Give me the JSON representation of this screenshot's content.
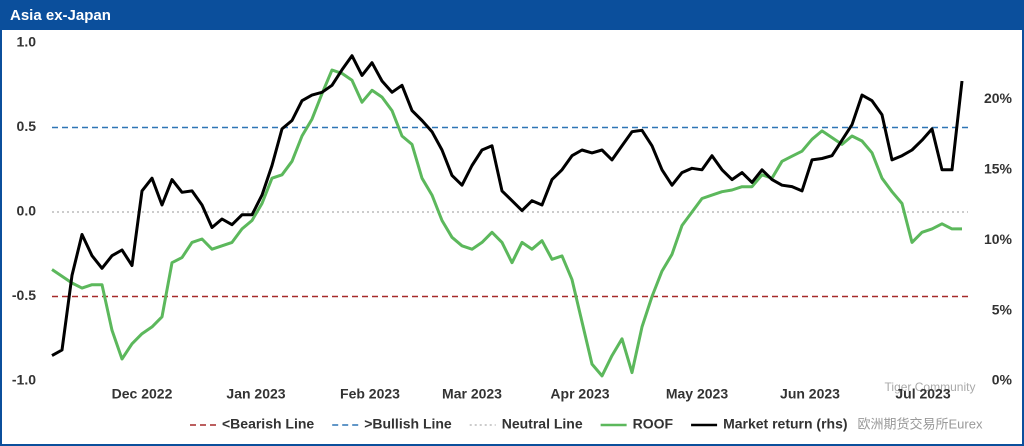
{
  "chart_data": {
    "type": "line",
    "title": "Asia ex-Japan",
    "x": [
      0,
      1,
      2,
      3,
      4,
      5,
      6,
      7,
      8,
      9,
      10,
      11,
      12,
      13,
      14,
      15,
      16,
      17,
      18,
      19,
      20,
      21,
      22,
      23,
      24,
      25,
      26,
      27,
      28,
      29,
      30,
      31,
      32,
      33,
      34,
      35,
      36,
      37,
      38,
      39,
      40,
      41,
      42,
      43,
      44,
      45,
      46,
      47,
      48,
      49,
      50,
      51,
      52,
      53,
      54,
      55,
      56,
      57,
      58,
      59,
      60,
      61,
      62,
      63,
      64,
      65,
      66,
      67,
      68,
      69,
      70,
      71,
      72,
      73,
      74,
      75,
      76,
      77,
      78,
      79,
      80,
      81,
      82,
      83,
      84,
      85,
      86,
      87,
      88,
      89,
      90,
      91
    ],
    "xlim": [
      0,
      91
    ],
    "xticks": [
      {
        "value": 9,
        "label": "Dec 2022"
      },
      {
        "value": 20.4,
        "label": "Jan 2023"
      },
      {
        "value": 31.8,
        "label": "Feb 2023"
      },
      {
        "value": 42,
        "label": "Mar 2023"
      },
      {
        "value": 52.8,
        "label": "Apr 2023"
      },
      {
        "value": 64.5,
        "label": "May 2023"
      },
      {
        "value": 75.8,
        "label": "Jun 2023"
      },
      {
        "value": 87.1,
        "label": "Jul 2023"
      }
    ],
    "ylim": [
      -1,
      1
    ],
    "yticks": [
      {
        "value": -1,
        "label": "-1.0"
      },
      -0.5,
      {
        "value": 0,
        "label": "0.0"
      },
      0.5,
      {
        "value": 1,
        "label": "1.0"
      }
    ],
    "y2lim": [
      0,
      24
    ],
    "y2ticks": [
      {
        "value": 0,
        "label": "0%"
      },
      {
        "value": 5,
        "label": "5%"
      },
      {
        "value": 10,
        "label": "10%"
      },
      {
        "value": 15,
        "label": "15%"
      },
      {
        "value": 20,
        "label": "20%"
      }
    ],
    "reference_lines": [
      {
        "name": "<Bearish Line",
        "value": -0.5,
        "color": "#a52a2a",
        "style": "dashed"
      },
      {
        "name": ">Bullish Line",
        "value": 0.5,
        "color": "#2e75b6",
        "style": "dashed"
      },
      {
        "name": "Neutral Line",
        "value": 0,
        "color": "#bbbbbb",
        "style": "dotted"
      }
    ],
    "series": [
      {
        "name": "ROOF",
        "color": "#5cb85c",
        "values": [
          -0.34,
          -0.38,
          -0.42,
          -0.45,
          -0.43,
          -0.43,
          -0.7,
          -0.87,
          -0.78,
          -0.72,
          -0.68,
          -0.62,
          -0.3,
          -0.27,
          -0.18,
          -0.16,
          -0.22,
          -0.2,
          -0.18,
          -0.1,
          -0.05,
          0.05,
          0.2,
          0.22,
          0.3,
          0.45,
          0.55,
          0.7,
          0.84,
          0.82,
          0.78,
          0.65,
          0.72,
          0.68,
          0.6,
          0.45,
          0.4,
          0.2,
          0.1,
          -0.05,
          -0.15,
          -0.2,
          -0.22,
          -0.18,
          -0.12,
          -0.18,
          -0.3,
          -0.18,
          -0.22,
          -0.17,
          -0.28,
          -0.26,
          -0.4,
          -0.65,
          -0.9,
          -0.97,
          -0.85,
          -0.75,
          -0.95,
          -0.68,
          -0.5,
          -0.35,
          -0.25,
          -0.08,
          0.0,
          0.08,
          0.1,
          0.12,
          0.13,
          0.15,
          0.15,
          0.22,
          0.2,
          0.3,
          0.33,
          0.36,
          0.43,
          0.48,
          0.44,
          0.4,
          0.45,
          0.42,
          0.35,
          0.2,
          0.12,
          0.05,
          -0.18,
          -0.12,
          -0.1,
          -0.07,
          -0.1,
          -0.1
        ]
      },
      {
        "name": "Market return (rhs)",
        "color": "#000000",
        "axis": "y2",
        "values": [
          1.8,
          2.2,
          7.5,
          10.4,
          8.9,
          8.0,
          8.9,
          9.3,
          8.2,
          13.5,
          14.4,
          12.5,
          14.3,
          13.4,
          13.5,
          12.5,
          10.9,
          11.5,
          11.1,
          11.8,
          11.8,
          13.2,
          15.3,
          17.9,
          18.5,
          19.9,
          20.3,
          20.5,
          21.0,
          22.1,
          23.1,
          21.7,
          22.6,
          21.3,
          20.5,
          21.0,
          19.2,
          18.5,
          17.7,
          16.4,
          14.6,
          13.9,
          15.3,
          16.4,
          16.7,
          13.5,
          12.8,
          12.1,
          12.8,
          12.5,
          14.3,
          15.0,
          16.0,
          16.4,
          16.2,
          16.4,
          15.7,
          16.7,
          17.7,
          17.8,
          16.7,
          15.0,
          13.9,
          14.8,
          15.1,
          15.0,
          16.0,
          15.0,
          14.3,
          14.8,
          14.1,
          15.0,
          14.3,
          13.9,
          13.8,
          13.5,
          15.7,
          15.8,
          16.0,
          17.1,
          18.2,
          20.3,
          19.9,
          18.9,
          15.7,
          16.0,
          16.4,
          17.1,
          17.9,
          15.0,
          15.0,
          21.3
        ]
      }
    ],
    "watermark": [
      "Tiger Community",
      "欧洲期货交易所Eurex"
    ]
  }
}
